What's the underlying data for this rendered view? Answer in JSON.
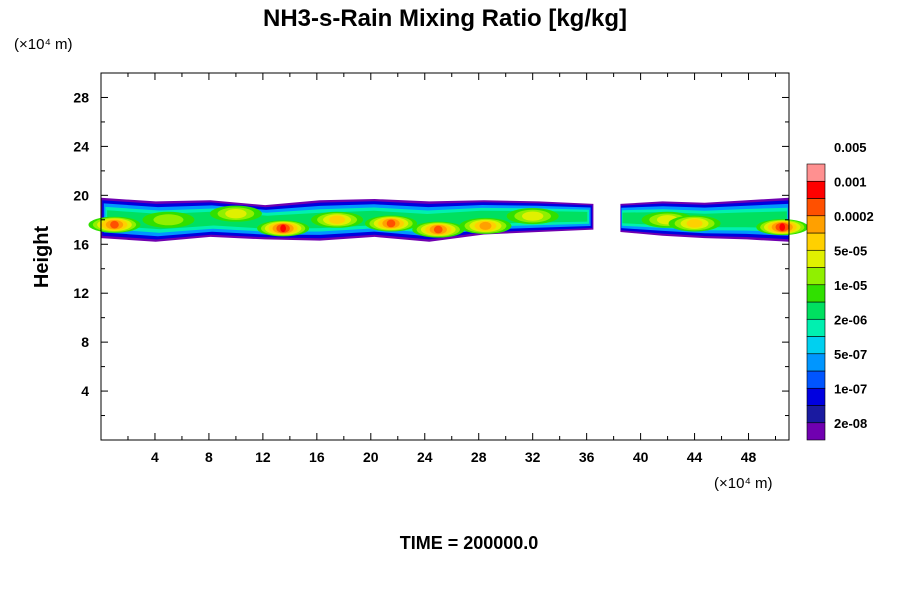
{
  "chart_data": {
    "type": "heatmap",
    "title": "NH3-s-Rain Mixing Ratio [kg/kg]",
    "ylabel": "Height",
    "y_unit": "(×10⁴ m)",
    "x_unit": "(×10⁴ m)",
    "xlim": [
      0,
      51
    ],
    "ylim": [
      0,
      30
    ],
    "x_ticks": [
      "4",
      "8",
      "12",
      "16",
      "20",
      "24",
      "28",
      "32",
      "36",
      "40",
      "44",
      "48"
    ],
    "y_ticks": [
      "4",
      "8",
      "12",
      "16",
      "20",
      "24",
      "28"
    ],
    "time_label": "TIME = 200000.0",
    "colorbar": {
      "colors": [
        "#7000b0",
        "#1a1aa0",
        "#0000e0",
        "#0055ff",
        "#0096ff",
        "#00d0f0",
        "#00f0b0",
        "#00e060",
        "#30e000",
        "#90f000",
        "#e0f000",
        "#ffd000",
        "#ffa000",
        "#ff5000",
        "#ff0000",
        "#ff9090"
      ],
      "labels": [
        "2e-08",
        "1e-07",
        "5e-07",
        "2e-06",
        "1e-05",
        "5e-05",
        "0.0002",
        "0.001",
        "0.005"
      ]
    },
    "layer": {
      "description_values": "cloud band between heights ~16 and ~20, gap near x 36-38",
      "segments": [
        {
          "x": [
            0,
            36.5
          ],
          "bottom": [
            16.5,
            16.2,
            16.6,
            16.4,
            16.3,
            16.6,
            16.2,
            16.8,
            17.0,
            17.2
          ],
          "top": [
            19.8,
            19.5,
            19.6,
            19.2,
            19.6,
            19.7,
            19.5,
            19.6,
            19.5,
            19.3
          ]
        },
        {
          "x": [
            38.5,
            51
          ],
          "bottom": [
            17.0,
            16.7,
            16.5,
            16.4,
            16.2
          ],
          "top": [
            19.3,
            19.5,
            19.4,
            19.6,
            19.8
          ]
        }
      ],
      "hotspots": [
        {
          "x": 1.0,
          "y": 17.6,
          "level": 13
        },
        {
          "x": 5.0,
          "y": 18.0,
          "level": 9
        },
        {
          "x": 10.0,
          "y": 18.5,
          "level": 10
        },
        {
          "x": 13.5,
          "y": 17.3,
          "level": 14
        },
        {
          "x": 17.5,
          "y": 18.0,
          "level": 11
        },
        {
          "x": 21.5,
          "y": 17.7,
          "level": 13
        },
        {
          "x": 25.0,
          "y": 17.2,
          "level": 13
        },
        {
          "x": 28.5,
          "y": 17.5,
          "level": 12
        },
        {
          "x": 32.0,
          "y": 18.3,
          "level": 10
        },
        {
          "x": 42.0,
          "y": 18.0,
          "level": 10
        },
        {
          "x": 44.0,
          "y": 17.7,
          "level": 11
        },
        {
          "x": 50.5,
          "y": 17.4,
          "level": 14
        }
      ]
    }
  }
}
